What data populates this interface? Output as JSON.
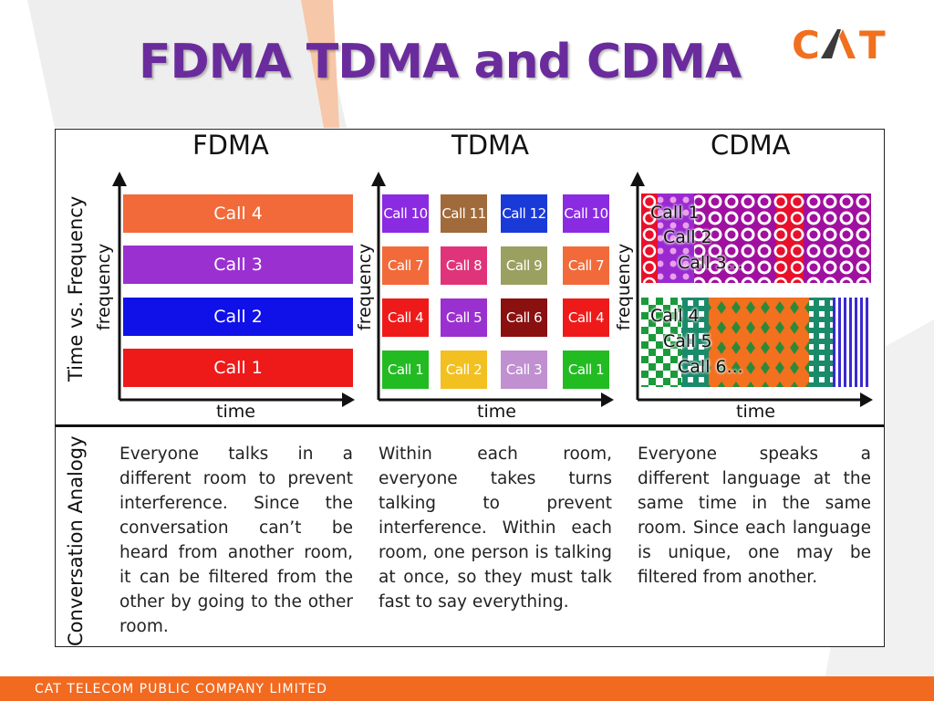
{
  "slide": {
    "title": "FDMA TDMA and CDMA",
    "logo_text": "CAT",
    "footer": "CAT TELECOM PUBLIC COMPANY LIMITED"
  },
  "diagram": {
    "row_label_top": "Time vs. Frequency",
    "row_label_bottom": "Conversation Analogy",
    "columns": [
      {
        "title": "FDMA",
        "y_axis": "frequency",
        "x_axis": "time"
      },
      {
        "title": "TDMA",
        "y_axis": "frequency",
        "x_axis": "time"
      },
      {
        "title": "CDMA",
        "y_axis": "frequency",
        "x_axis": "time"
      }
    ],
    "fdma_bars": [
      {
        "label": "Call 4",
        "color": "#f26a3a"
      },
      {
        "label": "Call 3",
        "color": "#9b30d0"
      },
      {
        "label": "Call 2",
        "color": "#1010e8"
      },
      {
        "label": "Call 1",
        "color": "#ee1a1a"
      }
    ],
    "tdma_rows": [
      [
        {
          "label": "Call 10",
          "color": "#8a2be2"
        },
        {
          "label": "Call 11",
          "color": "#a06a3a"
        },
        {
          "label": "Call 12",
          "color": "#1a3ad8"
        },
        {
          "label": "Call 10",
          "color": "#8a2be2"
        }
      ],
      [
        {
          "label": "Call 7",
          "color": "#f26a3a"
        },
        {
          "label": "Call 8",
          "color": "#e0347a"
        },
        {
          "label": "Call 9",
          "color": "#9aa060"
        },
        {
          "label": "Call 7",
          "color": "#f26a3a"
        }
      ],
      [
        {
          "label": "Call 4",
          "color": "#ee1a1a"
        },
        {
          "label": "Call 5",
          "color": "#9b30d0"
        },
        {
          "label": "Call 6",
          "color": "#8b1010"
        },
        {
          "label": "Call 4",
          "color": "#ee1a1a"
        }
      ],
      [
        {
          "label": "Call 1",
          "color": "#22bb22"
        },
        {
          "label": "Call 2",
          "color": "#f2c020"
        },
        {
          "label": "Call 3",
          "color": "#c090d0"
        },
        {
          "label": "Call 1",
          "color": "#22bb22"
        }
      ]
    ],
    "cdma_top_labels": [
      "Call 1",
      "Call 2",
      "Call 3..."
    ],
    "cdma_bottom_labels": [
      "Call 4",
      "Call 5",
      "Call 6..."
    ],
    "analogies": [
      "Everyone talks in a different room to prevent interference. Since the conversation can’t be heard from another room, it can be filtered from the other by going to the other room.",
      "Within each room, everyone takes turns talking to prevent interference. Within each room, one person is talking at once, so they must talk fast to say everything.",
      "Everyone speaks a different language at the same time in the same room. Since each language is unique, one may be filtered from another."
    ]
  }
}
